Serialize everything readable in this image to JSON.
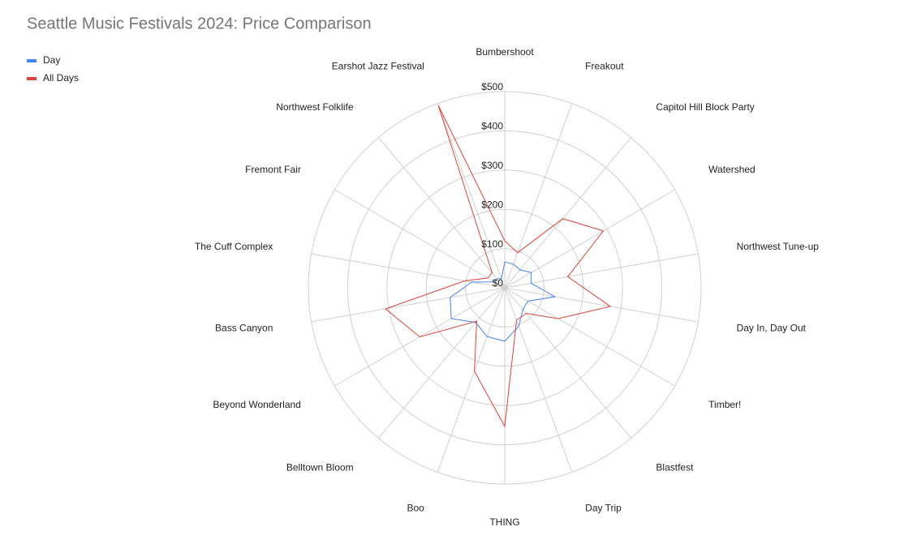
{
  "chart_data": {
    "type": "radar",
    "title": "Seattle Music Festivals 2024: Price Comparison",
    "categories": [
      "Bumbershoot",
      "Freakout",
      "Capitol Hill Block Party",
      "Watershed",
      "Northwest Tune-up",
      "Day In, Day Out",
      "Timber!",
      "Blastfest",
      "Day Trip",
      "THING",
      "Boo",
      "Belltown Bloom",
      "Beyond Wonderland",
      "Bass Canyon",
      "The Cuff Complex",
      "Fremont Fair",
      "Northwest Folklife",
      "Earshot Jazz Festival"
    ],
    "series": [
      {
        "name": "Day",
        "color": "#4285f4",
        "values": [
          66,
          64,
          60,
          78,
          68,
          130,
          68,
          72,
          104,
          136,
          132,
          115,
          157,
          141,
          85,
          30,
          30,
          25
        ]
      },
      {
        "name": "All Days",
        "color": "#db4437",
        "values": [
          120,
          95,
          230,
          290,
          163,
          273,
          157,
          85,
          88,
          353,
          226,
          111,
          250,
          308,
          103,
          50,
          50,
          495
        ]
      }
    ],
    "ylim": [
      0,
      500
    ],
    "yticks": [
      {
        "value": 0,
        "label": "$0"
      },
      {
        "value": 100,
        "label": "$100"
      },
      {
        "value": 200,
        "label": "$200"
      },
      {
        "value": 300,
        "label": "$300"
      },
      {
        "value": 400,
        "label": "$400"
      },
      {
        "value": 500,
        "label": "$500"
      }
    ],
    "grid": true,
    "legend": "top-left"
  }
}
